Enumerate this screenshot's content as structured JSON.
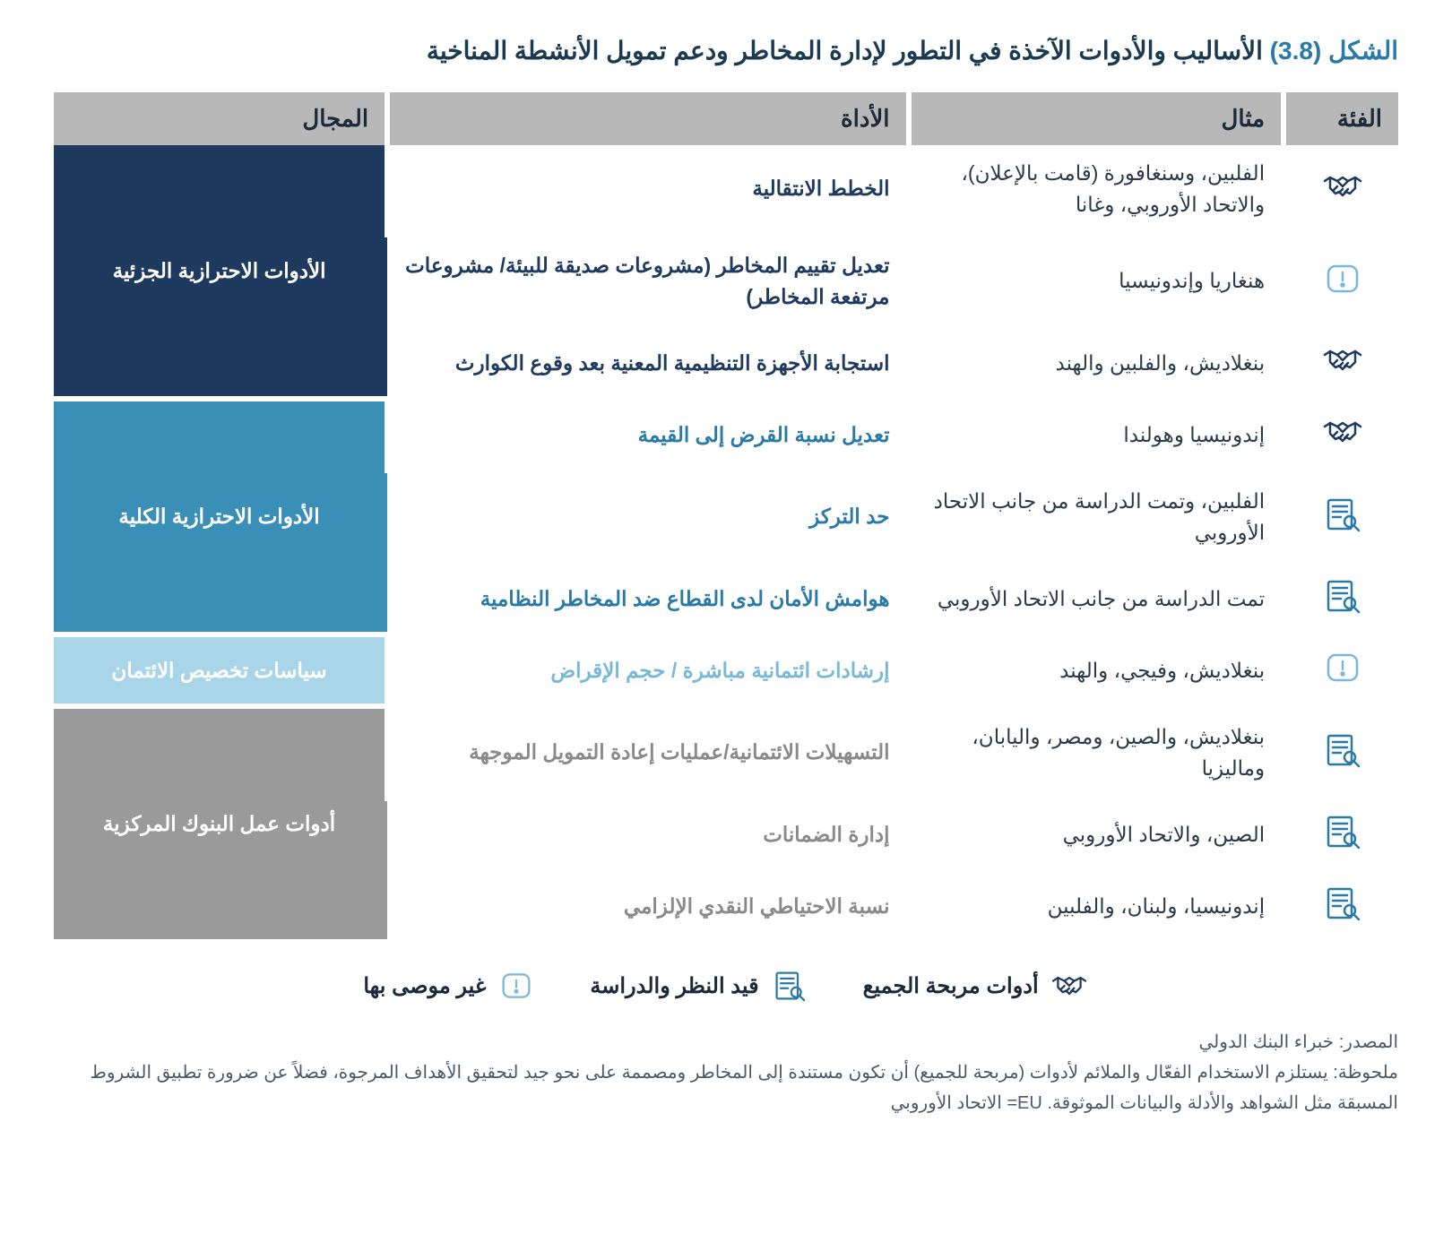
{
  "title": {
    "prefix": "الشكل (3.8)",
    "text": "الأساليب والأدوات الآخذة في التطور لإدارة المخاطر ودعم تمويل الأنشطة المناخية"
  },
  "headers": {
    "category": "الفئة",
    "example": "مثال",
    "tool": "الأداة",
    "area": "المجال"
  },
  "icons": {
    "handshake": "handshake",
    "warning": "warning",
    "research": "research"
  },
  "areas": [
    {
      "label": "الأدوات الاحترازية الجزئية",
      "bg": "#1e3a5f",
      "tool_color": "#1e3a5f",
      "rows": [
        {
          "icon": "handshake",
          "example": "الفلبين، وسنغافورة (قامت بالإعلان)، والاتحاد الأوروبي، وغانا",
          "tool": "الخطط الانتقالية"
        },
        {
          "icon": "warning",
          "example": "هنغاريا وإندونيسيا",
          "tool": "تعديل تقييم المخاطر (مشروعات صديقة للبيئة/ مشروعات مرتفعة المخاطر)"
        },
        {
          "icon": "handshake",
          "example": "بنغلاديش، والفلبين والهند",
          "tool": "استجابة الأجهزة التنظيمية المعنية بعد وقوع الكوارث"
        }
      ]
    },
    {
      "label": "الأدوات الاحترازية الكلية",
      "bg": "#3a8fb7",
      "tool_color": "#2a7aa8",
      "rows": [
        {
          "icon": "handshake",
          "example": "إندونيسيا وهولندا",
          "tool": "تعديل نسبة القرض إلى القيمة"
        },
        {
          "icon": "research",
          "example": "الفلبين، وتمت الدراسة من جانب الاتحاد الأوروبي",
          "tool": "حد التركز"
        },
        {
          "icon": "research",
          "example": "تمت الدراسة من جانب الاتحاد الأوروبي",
          "tool": "هوامش الأمان لدى القطاع ضد المخاطر النظامية"
        }
      ]
    },
    {
      "label": "سياسات تخصيص الائتمان",
      "bg": "#a8d5e8",
      "tool_color": "#7ab8d8",
      "area_text_color": "#ffffff",
      "rows": [
        {
          "icon": "warning",
          "example": "بنغلاديش، وفيجي، والهند",
          "tool": "إرشادات ائتمانية مباشرة / حجم الإقراض"
        }
      ]
    },
    {
      "label": "أدوات عمل البنوك المركزية",
      "bg": "#9a9a9a",
      "tool_color": "#8a8a8a",
      "rows": [
        {
          "icon": "research",
          "example": "بنغلاديش، والصين، ومصر، واليابان، وماليزيا",
          "tool": "التسهيلات الائتمانية/عمليات إعادة التمويل الموجهة"
        },
        {
          "icon": "research",
          "example": "الصين، والاتحاد الأوروبي",
          "tool": "إدارة الضمانات"
        },
        {
          "icon": "research",
          "example": "إندونيسيا، ولبنان، والفلبين",
          "tool": "نسبة الاحتياطي النقدي الإلزامي"
        }
      ]
    }
  ],
  "legend": [
    {
      "icon": "handshake",
      "label": "أدوات مربحة الجميع"
    },
    {
      "icon": "research",
      "label": "قيد النظر والدراسة"
    },
    {
      "icon": "warning",
      "label": "غير موصى بها"
    }
  ],
  "source": "المصدر: خبراء البنك الدولي",
  "note": "ملحوظة: يستلزم الاستخدام الفعّال والملائم لأدوات (مربحة للجميع) أن تكون مستندة إلى المخاطر ومصممة على نحو جيد لتحقيق الأهداف المرجوة، فضلاً عن ضرورة تطبيق الشروط المسبقة مثل الشواهد والأدلة والبيانات الموثوقة. EU= الاتحاد الأوروبي"
}
